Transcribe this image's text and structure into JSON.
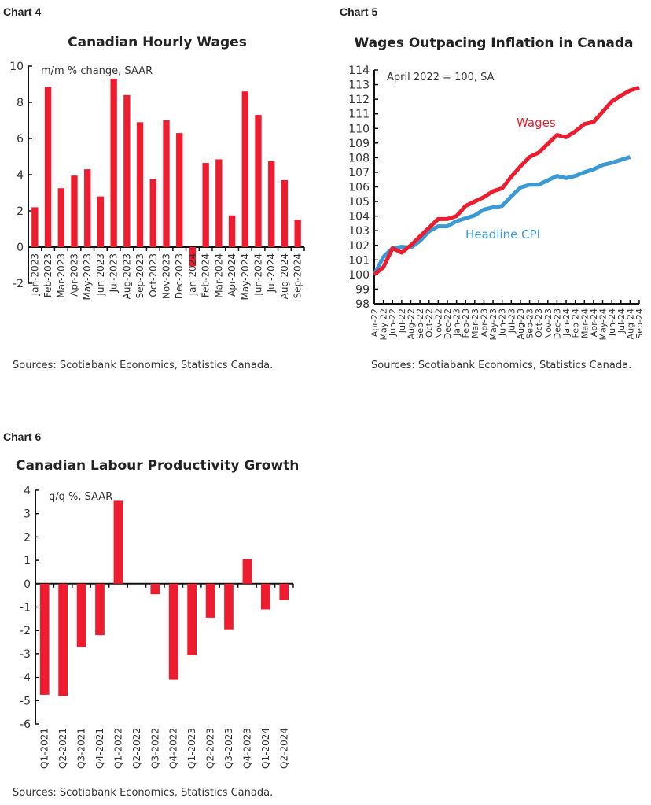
{
  "chart_data": [
    {
      "label": "Chart 4",
      "type": "bar",
      "title": "Canadian Hourly Wages",
      "annotation": "m/m % change, SAAR",
      "source": "Sources: Scotiabank Economics, Statistics Canada.",
      "ylim": [
        -2,
        10
      ],
      "yticks": [
        "10",
        "8",
        "6",
        "4",
        "2",
        "0",
        "-2"
      ],
      "categories": [
        "Jan-2023",
        "Feb-2023",
        "Mar-2023",
        "Apr-2023",
        "May-2023",
        "Jun-2023",
        "Jul-2023",
        "Aug-2023",
        "Sep-2023",
        "Oct-2023",
        "Nov-2023",
        "Dec-2023",
        "Jan-2024",
        "Feb-2024",
        "Mar-2024",
        "Apr-2024",
        "May-2024",
        "Jun-2024",
        "Jul-2024",
        "Aug-2024",
        "Sep-2024"
      ],
      "values": [
        2.2,
        8.85,
        3.25,
        3.95,
        4.3,
        2.8,
        9.3,
        8.4,
        6.9,
        3.75,
        7.0,
        6.3,
        -1.05,
        4.65,
        4.85,
        1.75,
        8.6,
        7.3,
        4.75,
        3.7,
        1.5
      ],
      "color": "#ed1c2e",
      "grid": false
    },
    {
      "label": "Chart 5",
      "type": "line",
      "title": "Wages Outpacing Inflation in Canada",
      "annotation": "April 2022 = 100, SA",
      "source": "Sources: Scotiabank Economics, Statistics Canada.",
      "ylim": [
        98,
        114
      ],
      "yticks": [
        "114",
        "113",
        "112",
        "111",
        "110",
        "109",
        "108",
        "107",
        "106",
        "105",
        "104",
        "103",
        "102",
        "101",
        "100",
        "99",
        "98"
      ],
      "categories": [
        "Apr-22",
        "May-22",
        "Jun-22",
        "Jul-22",
        "Aug-22",
        "Sep-22",
        "Oct-22",
        "Nov-22",
        "Dec-22",
        "Jan-23",
        "Feb-23",
        "Mar-23",
        "Apr-23",
        "May-23",
        "Jun-23",
        "Jul-23",
        "Aug-23",
        "Sep-23",
        "Oct-23",
        "Nov-23",
        "Dec-23",
        "Jan-24",
        "Feb-24",
        "Mar-24",
        "Apr-24",
        "May-24",
        "Jun-24",
        "Jul-24",
        "Aug-24",
        "Sep-24"
      ],
      "series": [
        {
          "name": "Wages",
          "color": "#ed1c2e",
          "values": [
            100,
            100.5,
            101.8,
            101.5,
            102.0,
            102.6,
            103.2,
            103.8,
            103.8,
            104.0,
            104.7,
            105.0,
            105.3,
            105.7,
            105.9,
            106.7,
            107.4,
            108.05,
            108.35,
            108.95,
            109.55,
            109.4,
            109.8,
            110.3,
            110.45,
            111.15,
            111.85,
            112.25,
            112.6,
            112.8
          ]
        },
        {
          "name": "Headline CPI",
          "color": "#3b9ad4",
          "values": [
            100,
            101.2,
            101.8,
            101.9,
            101.85,
            102.3,
            102.95,
            103.3,
            103.3,
            103.65,
            103.85,
            104.05,
            104.45,
            104.6,
            104.7,
            105.35,
            105.95,
            106.15,
            106.15,
            106.45,
            106.75,
            106.6,
            106.75,
            107.0,
            107.2,
            107.5,
            107.65,
            107.85,
            108.05,
            null
          ]
        }
      ],
      "grid": false,
      "legend": "inline labels"
    },
    {
      "label": "Chart 6",
      "type": "bar",
      "title": "Canadian Labour Productivity Growth",
      "annotation": "q/q %, SAAR",
      "source": "Sources: Scotiabank Economics, Statistics Canada.",
      "ylim": [
        -6,
        4
      ],
      "yticks": [
        "4",
        "3",
        "2",
        "1",
        "0",
        "-1",
        "-2",
        "-3",
        "-4",
        "-5",
        "-6"
      ],
      "categories": [
        "Q1-2021",
        "Q2-2021",
        "Q3-2021",
        "Q4-2021",
        "Q1-2022",
        "Q2-2022",
        "Q3-2022",
        "Q4-2022",
        "Q1-2023",
        "Q2-2023",
        "Q3-2023",
        "Q4-2023",
        "Q1-2024",
        "Q2-2024"
      ],
      "values": [
        -4.75,
        -4.8,
        -2.7,
        -2.2,
        3.55,
        0,
        -0.45,
        -4.1,
        -3.05,
        -1.45,
        -1.95,
        1.05,
        -1.1,
        -0.7
      ],
      "color": "#ed1c2e",
      "grid": false
    }
  ]
}
